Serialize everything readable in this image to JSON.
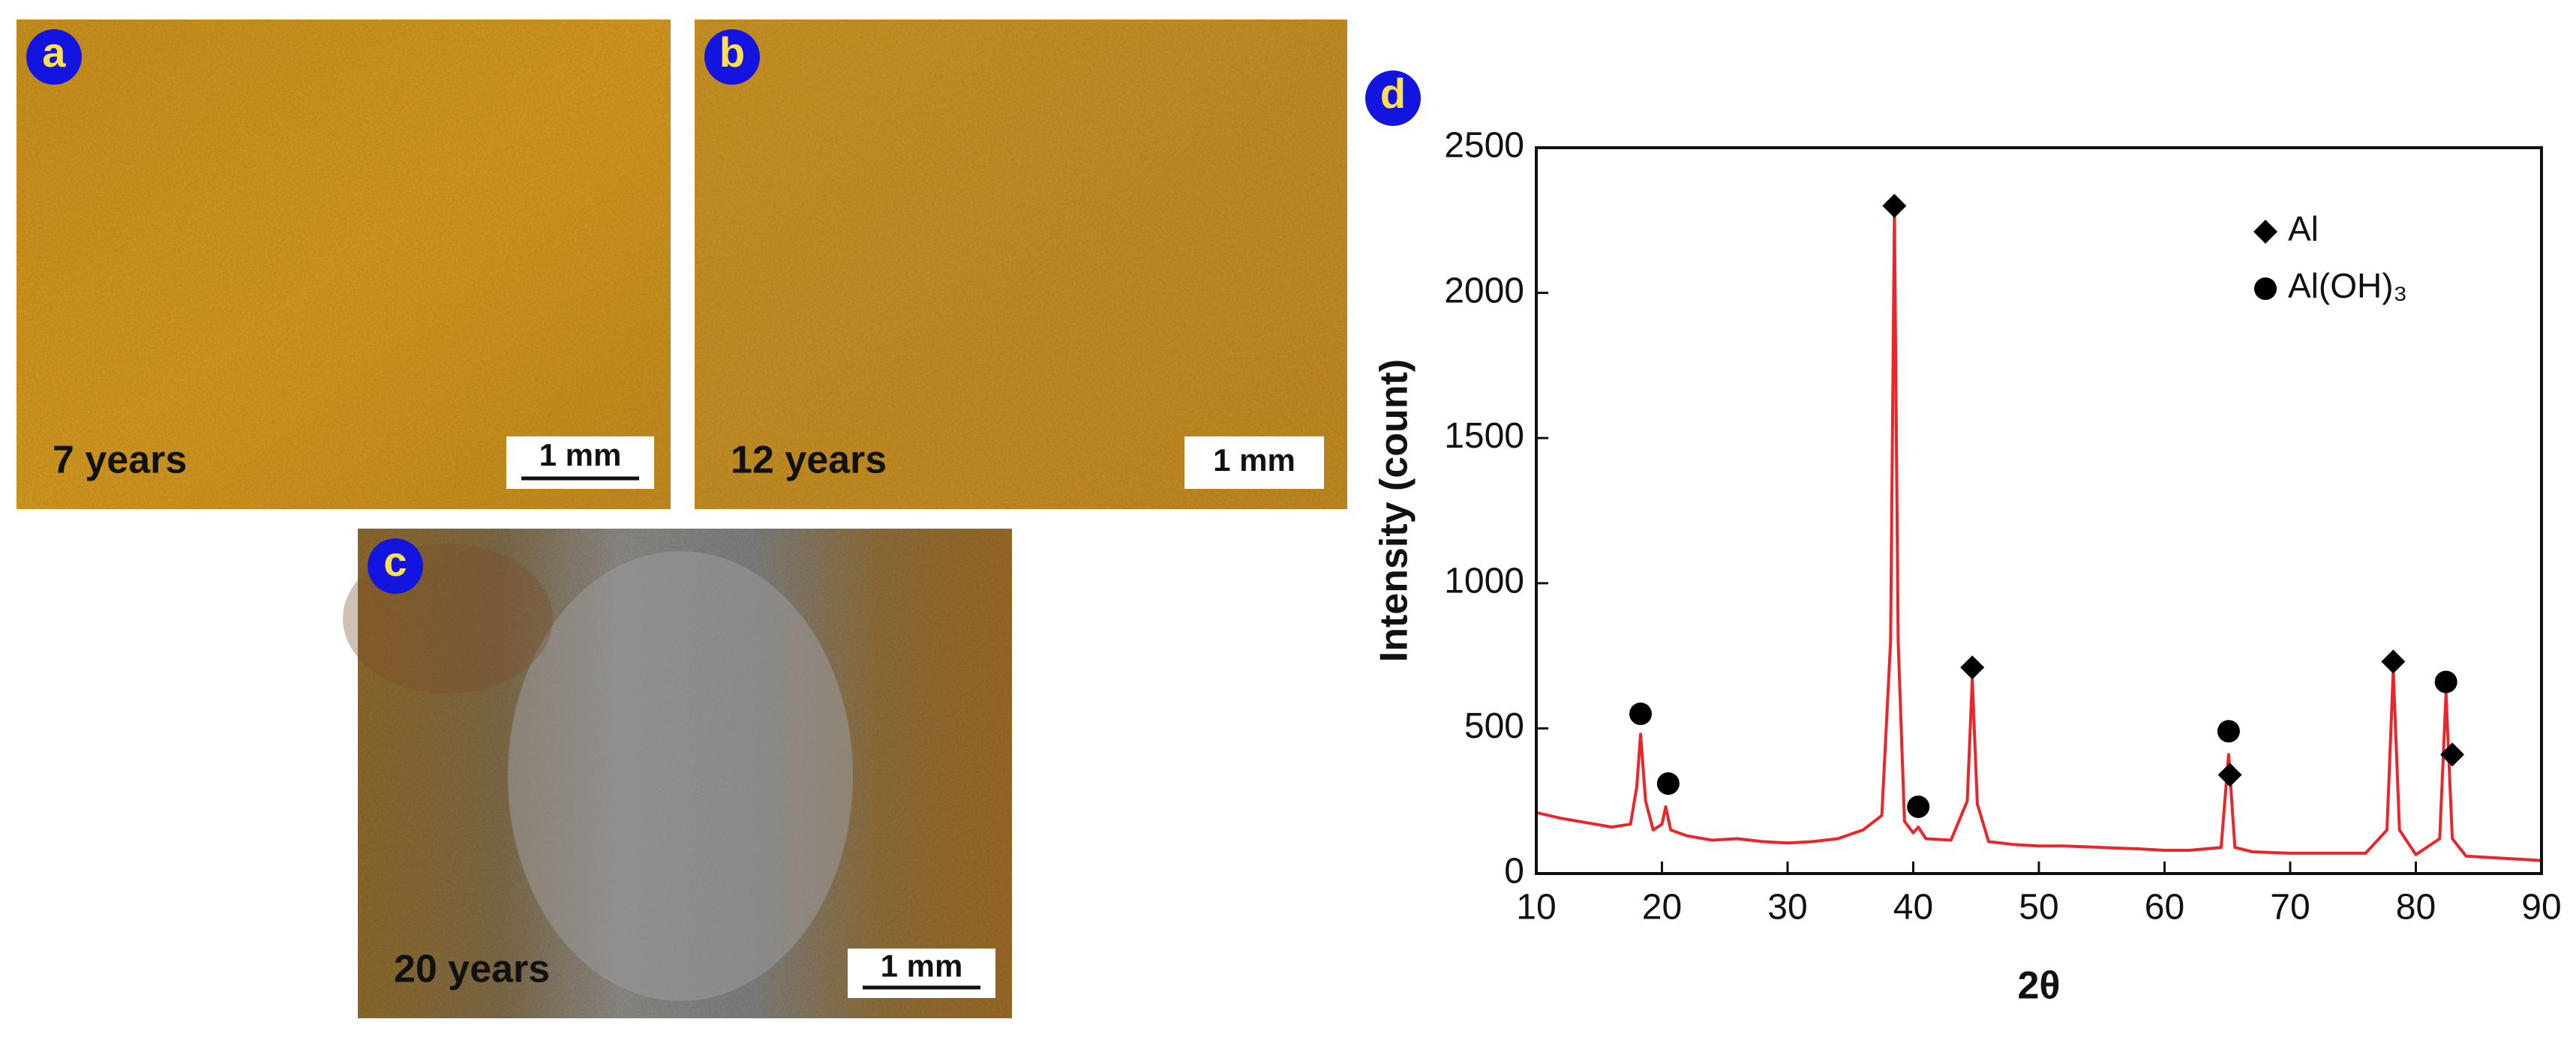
{
  "panels": [
    {
      "label": "a",
      "caption": "7 years",
      "scale_bar": "1 mm"
    },
    {
      "label": "b",
      "caption": "12 years",
      "scale_bar": "1 mm"
    },
    {
      "label": "c",
      "caption": "20 years",
      "scale_bar": "1 mm"
    }
  ],
  "chart_data": {
    "type": "line",
    "panel_label": "d",
    "x_label": "2θ",
    "y_label": "Intensity (count)",
    "xlim": [
      10,
      90
    ],
    "ylim": [
      0,
      2500
    ],
    "xticks": [
      10,
      20,
      30,
      40,
      50,
      60,
      70,
      80,
      90
    ],
    "yticks": [
      0,
      500,
      1000,
      1500,
      2000,
      2500
    ],
    "series": [
      {
        "color": "#e8262b",
        "x": [
          10,
          12,
          14,
          16,
          17.5,
          18,
          18.3,
          18.7,
          19.3,
          20,
          20.3,
          20.7,
          22,
          24,
          26,
          28,
          30,
          32,
          34,
          36,
          37.5,
          38.2,
          38.5,
          38.8,
          39.3,
          40,
          40.4,
          41,
          43,
          44.3,
          44.7,
          45.1,
          46,
          48,
          50,
          52,
          55,
          58,
          60,
          62,
          64.5,
          65.1,
          65.6,
          67,
          70,
          73,
          76,
          77.7,
          78.2,
          78.7,
          80,
          81.9,
          82.4,
          82.9,
          84,
          86,
          88,
          90
        ],
        "values": [
          210,
          190,
          175,
          160,
          170,
          300,
          480,
          250,
          150,
          170,
          230,
          150,
          130,
          115,
          120,
          110,
          105,
          110,
          120,
          150,
          200,
          800,
          2280,
          800,
          180,
          140,
          160,
          120,
          115,
          250,
          670,
          240,
          110,
          100,
          95,
          95,
          90,
          85,
          80,
          80,
          90,
          410,
          90,
          75,
          70,
          70,
          70,
          150,
          700,
          150,
          65,
          120,
          620,
          120,
          60,
          55,
          50,
          45
        ]
      }
    ],
    "markers": [
      {
        "name": "Al",
        "shape": "diamond",
        "color": "#000000",
        "x": [
          38.5,
          44.7,
          65.2,
          78.2,
          82.9
        ],
        "values": [
          2300,
          710,
          340,
          730,
          410
        ]
      },
      {
        "name": "Al(OH)₃",
        "shape": "circle",
        "color": "#000000",
        "x": [
          18.3,
          20.5,
          40.4,
          65.1,
          82.4
        ],
        "values": [
          550,
          310,
          230,
          490,
          660
        ]
      }
    ]
  }
}
